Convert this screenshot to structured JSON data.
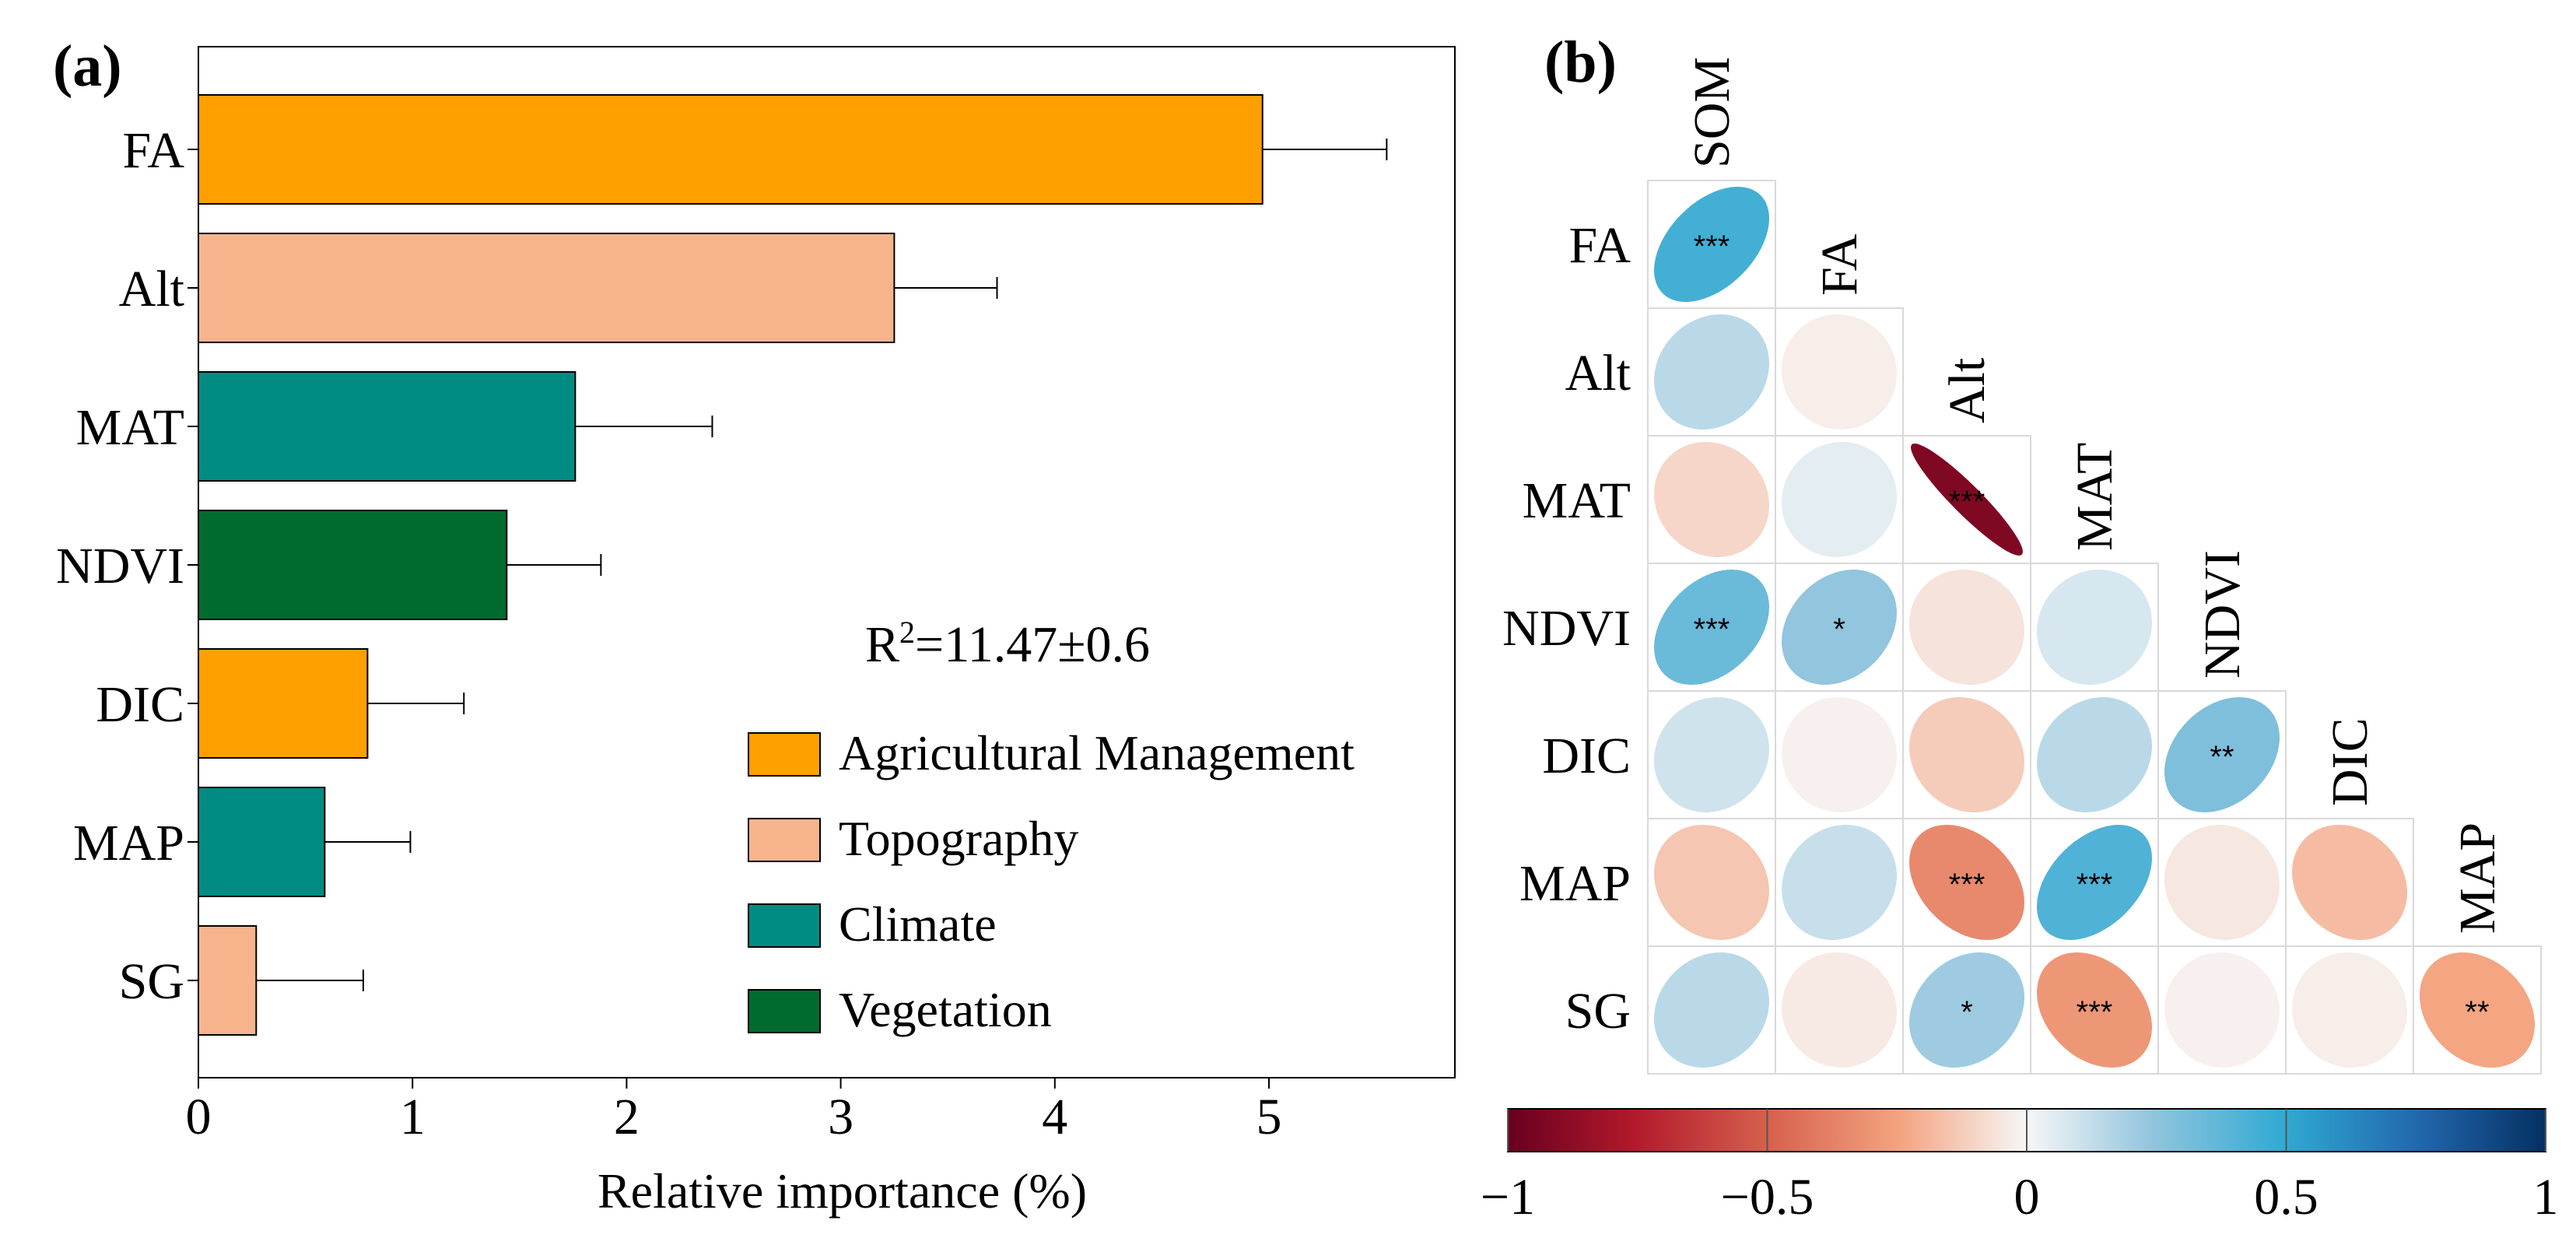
{
  "colors": {
    "agri": "#FF9F00",
    "topo": "#F7B48C",
    "climate": "#008C82",
    "vegetation": "#006B2F"
  },
  "chart_data": [
    {
      "type": "bar",
      "orientation": "horizontal",
      "panel_label": "(a)",
      "categories": [
        "FA",
        "Alt",
        "MAT",
        "NDVI",
        "DIC",
        "MAP",
        "SG"
      ],
      "values": [
        4.97,
        3.25,
        1.76,
        1.44,
        0.79,
        0.59,
        0.27
      ],
      "errors": [
        0.58,
        0.48,
        0.64,
        0.44,
        0.45,
        0.4,
        0.5
      ],
      "groups": [
        "agri",
        "topo",
        "climate",
        "vegetation",
        "agri",
        "climate",
        "topo"
      ],
      "xlabel": "Relative importance (%)",
      "xlim": [
        0,
        5.83
      ],
      "xticks": [
        0,
        1,
        2,
        3,
        4,
        5
      ],
      "annotation_sup": "2",
      "annotation_main": "R",
      "annotation_rest": "=11.47±0.6",
      "legend_position": "lower-right",
      "legend": [
        {
          "label": "Agricultural Management",
          "color_key": "agri"
        },
        {
          "label": "Topography",
          "color_key": "topo"
        },
        {
          "label": "Climate",
          "color_key": "climate"
        },
        {
          "label": "Vegetation",
          "color_key": "vegetation"
        }
      ]
    },
    {
      "type": "heatmap",
      "subtype": "correlation-ellipse",
      "panel_label": "(b)",
      "rows": [
        "FA",
        "Alt",
        "MAT",
        "NDVI",
        "DIC",
        "MAP",
        "SG"
      ],
      "cols": [
        "SOM",
        "FA",
        "Alt",
        "MAT",
        "NDVI",
        "DIC",
        "MAP"
      ],
      "values": [
        [
          0.45
        ],
        [
          0.15,
          -0.03
        ],
        [
          -0.1,
          0.05,
          -0.92
        ],
        [
          0.35,
          0.25,
          -0.06,
          0.08
        ],
        [
          0.1,
          -0.02,
          -0.13,
          0.15,
          0.3
        ],
        [
          -0.15,
          0.12,
          -0.35,
          0.42,
          -0.05,
          -0.18
        ],
        [
          0.15,
          -0.04,
          0.22,
          -0.3,
          -0.02,
          -0.03,
          -0.25
        ]
      ],
      "significance": [
        [
          "***"
        ],
        [
          "",
          ""
        ],
        [
          "",
          "",
          "***"
        ],
        [
          "***",
          "*",
          "",
          ""
        ],
        [
          "",
          "",
          "",
          "",
          "**"
        ],
        [
          "",
          "",
          "***",
          "***",
          "",
          ""
        ],
        [
          "",
          "",
          "*",
          "***",
          "",
          "",
          "**"
        ]
      ],
      "colorbar": {
        "range": [
          -1,
          1
        ],
        "ticks": [
          -1,
          -0.5,
          0,
          0.5,
          1
        ],
        "tick_labels": [
          "−1",
          "−0.5",
          "0",
          "0.5",
          "1"
        ]
      }
    }
  ]
}
